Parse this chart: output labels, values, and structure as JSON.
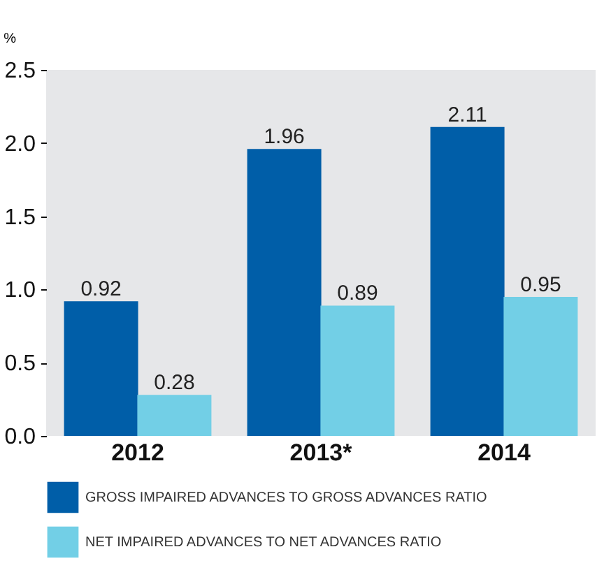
{
  "chart_data": {
    "type": "bar",
    "ylabel": "%",
    "categories": [
      "2012",
      "2013*",
      "2014"
    ],
    "series": [
      {
        "name": "GROSS IMPAIRED ADVANCES TO GROSS ADVANCES RATIO",
        "color": "#005ea8",
        "values": [
          0.92,
          1.96,
          2.11
        ]
      },
      {
        "name": "NET IMPAIRED ADVANCES TO NET ADVANCES RATIO",
        "color": "#72cfe6",
        "values": [
          0.28,
          0.89,
          0.95
        ]
      }
    ],
    "ylim": [
      0,
      2.5
    ],
    "yticks": [
      {
        "value": 0,
        "label": "0.0"
      },
      0.5,
      {
        "value": 1,
        "label": "1.0"
      },
      1.5,
      {
        "value": 2,
        "label": "2.0"
      },
      2.5
    ],
    "grid": false,
    "legend": "bottom",
    "data_labels": true
  }
}
